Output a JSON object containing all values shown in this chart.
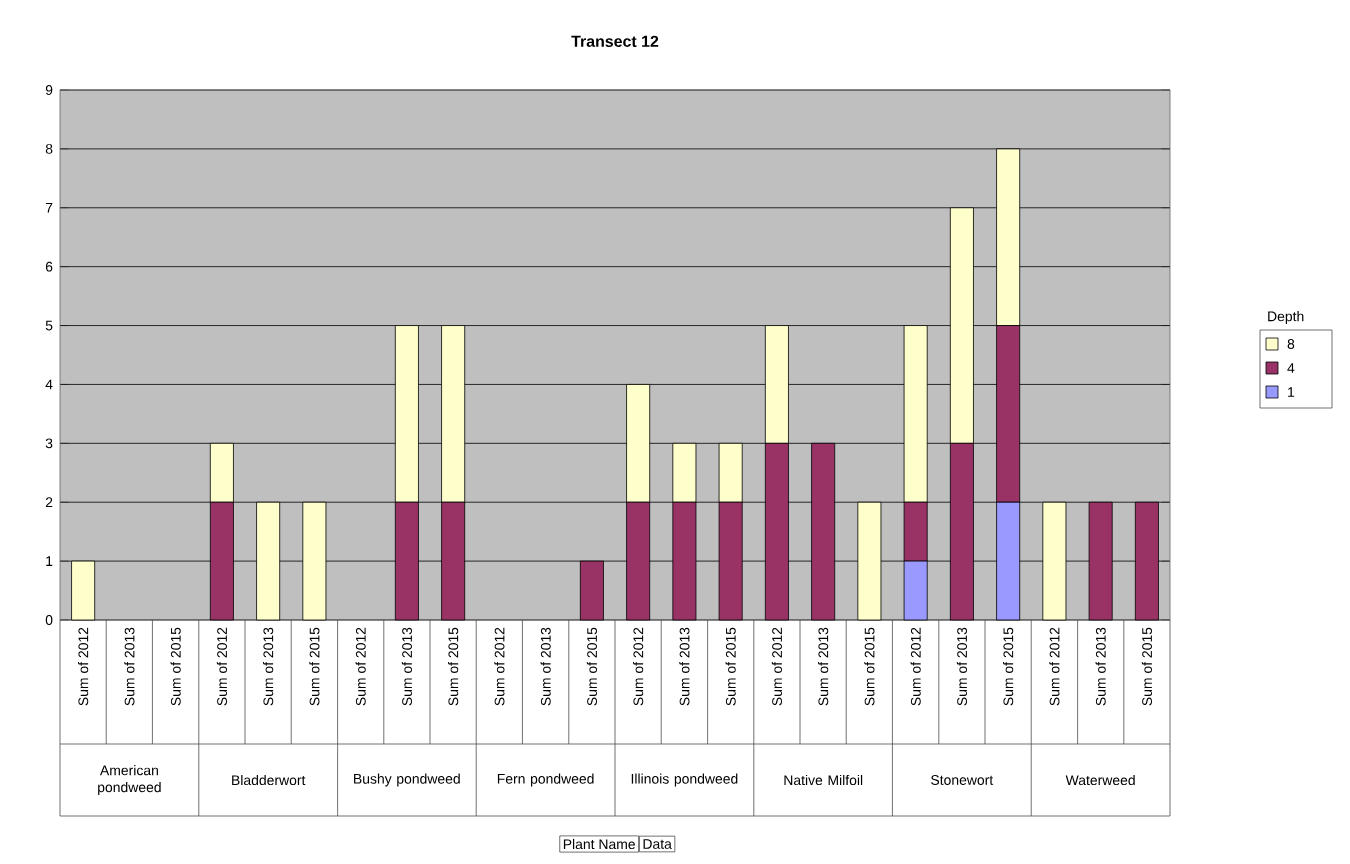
{
  "chart_data": {
    "type": "bar",
    "title": "Transect 12",
    "stacked": true,
    "categories": [
      "Sum of 2012",
      "Sum of 2013",
      "Sum of 2015",
      "Sum of 2012",
      "Sum of 2013",
      "Sum of 2015",
      "Sum of 2012",
      "Sum of 2013",
      "Sum of 2015",
      "Sum of 2012",
      "Sum of 2013",
      "Sum of 2015",
      "Sum of 2012",
      "Sum of 2013",
      "Sum of 2015",
      "Sum of 2012",
      "Sum of 2013",
      "Sum of 2015",
      "Sum of 2012",
      "Sum of 2013",
      "Sum of 2015",
      "Sum of 2012",
      "Sum of 2013",
      "Sum of 2015"
    ],
    "series": [
      {
        "name": "1",
        "color": "#9999ff",
        "values": [
          0,
          0,
          0,
          0,
          0,
          0,
          0,
          0,
          0,
          0,
          0,
          0,
          0,
          0,
          0,
          0,
          0,
          0,
          1,
          0,
          2,
          0,
          0,
          0
        ]
      },
      {
        "name": "4",
        "color": "#993366",
        "values": [
          0,
          0,
          0,
          2,
          0,
          0,
          0,
          2,
          2,
          0,
          0,
          1,
          2,
          2,
          2,
          3,
          3,
          0,
          1,
          3,
          3,
          0,
          2,
          2
        ]
      },
      {
        "name": "8",
        "color": "#ffffcc",
        "values": [
          1,
          0,
          0,
          1,
          2,
          2,
          0,
          3,
          3,
          0,
          0,
          0,
          2,
          1,
          1,
          2,
          0,
          2,
          3,
          4,
          3,
          2,
          0,
          0
        ]
      }
    ],
    "ylim": [
      0,
      9
    ],
    "yticks": [
      0,
      1,
      2,
      3,
      4,
      5,
      6,
      7,
      8,
      9
    ],
    "grid": "y",
    "legend": "right",
    "legend_title": "Depth",
    "annotations": [
      "American pondweed",
      "Bladderwort",
      "Bushy pondweed",
      "Fern pondweed",
      "Illinois pondweed",
      "Native Milfoil",
      "Stonewort",
      "Waterweed",
      "Plant Name",
      "Data"
    ]
  }
}
